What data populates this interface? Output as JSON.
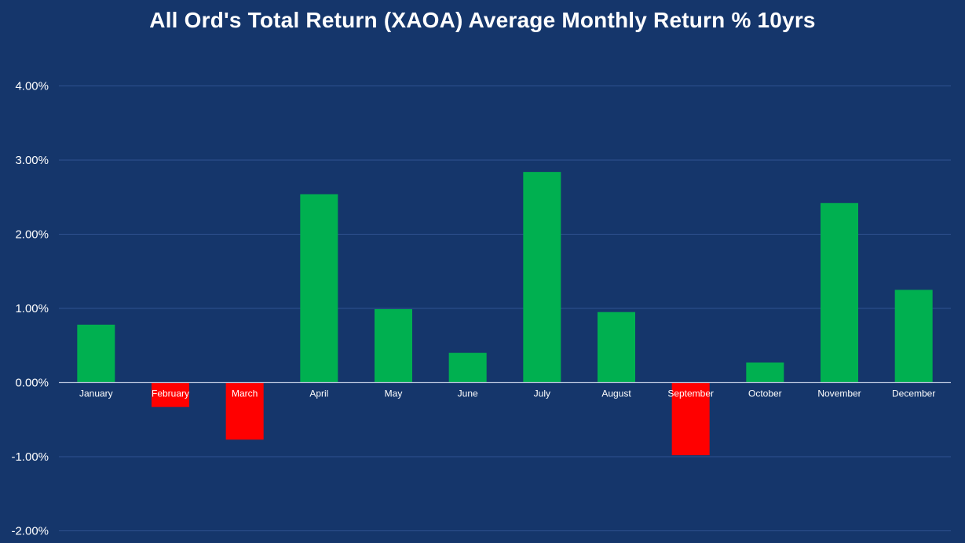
{
  "chart_data": {
    "type": "bar",
    "title": "All Ord's Total Return (XAOA) Average Monthly Return % 10yrs",
    "xlabel": "",
    "ylabel": "",
    "categories": [
      "January",
      "February",
      "March",
      "April",
      "May",
      "June",
      "July",
      "August",
      "September",
      "October",
      "November",
      "December"
    ],
    "values": [
      0.78,
      -0.33,
      -0.77,
      2.54,
      0.99,
      0.4,
      2.84,
      0.95,
      -0.98,
      0.27,
      2.42,
      1.25
    ],
    "ylim": [
      -2,
      4
    ],
    "yticks": [
      -2,
      -1,
      0,
      1,
      2,
      3,
      4
    ],
    "ytick_labels": [
      "-2.00%",
      "-1.00%",
      "0.00%",
      "1.00%",
      "2.00%",
      "3.00%",
      "4.00%"
    ],
    "grid": true,
    "legend": "none",
    "colors": {
      "background": "#15366b",
      "positive": "#00b050",
      "negative": "#ff0000",
      "gridline": "#2f5190",
      "axis": "#b8c4dc",
      "text": "#ffffff"
    }
  }
}
